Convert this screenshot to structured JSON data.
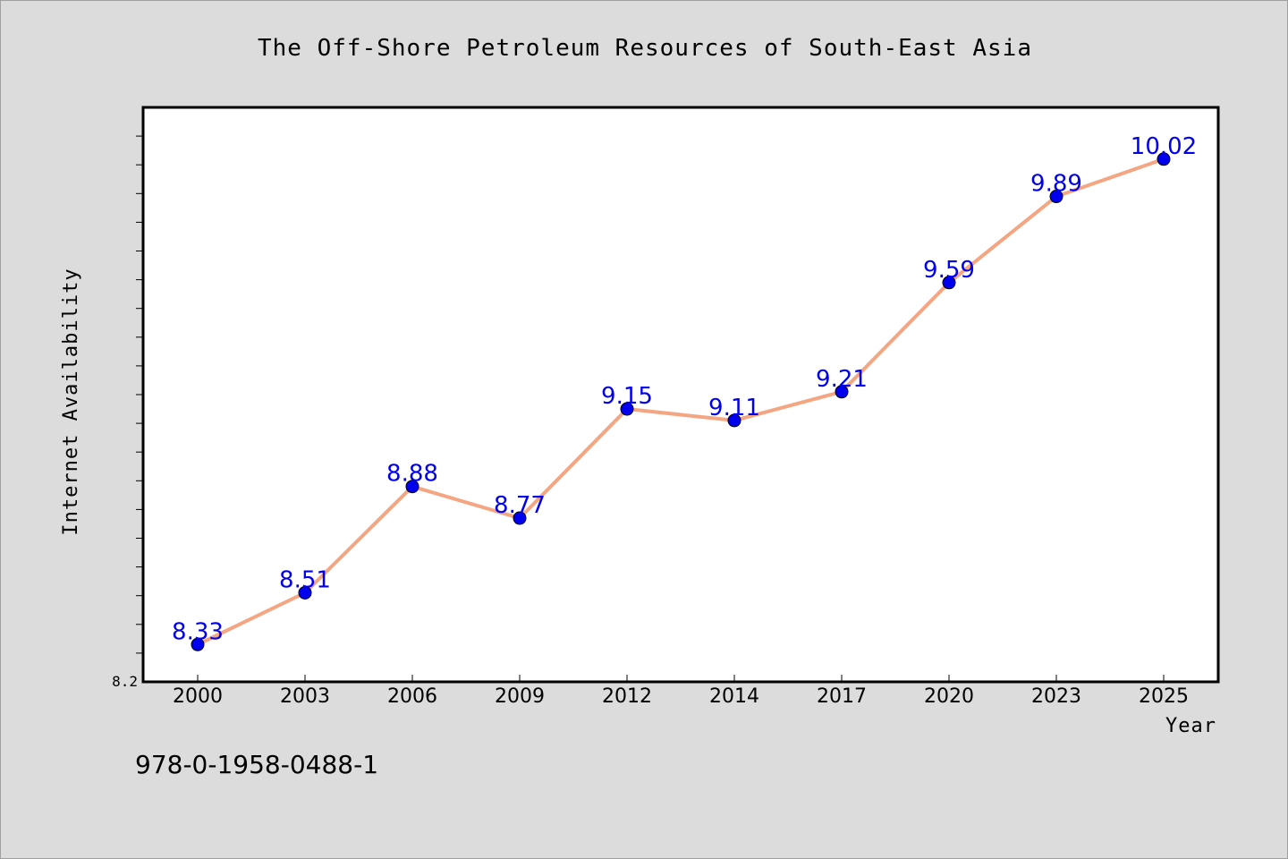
{
  "chart_data": {
    "type": "line",
    "title": "The Off-Shore Petroleum Resources of South-East Asia",
    "xlabel": "Year",
    "ylabel": "Internet Availability",
    "categories": [
      "2000",
      "2003",
      "2006",
      "2009",
      "2012",
      "2014",
      "2017",
      "2020",
      "2023",
      "2025"
    ],
    "series": [
      {
        "values": [
          8.33,
          8.51,
          8.88,
          8.77,
          9.15,
          9.11,
          9.21,
          9.59,
          9.89,
          10.02
        ]
      }
    ],
    "data_labels": [
      "8.33",
      "8.51",
      "8.88",
      "8.77",
      "9.15",
      "9.11",
      "9.21",
      "9.59",
      "9.89",
      "10.02"
    ],
    "ylim": [
      8.2,
      10.2
    ],
    "y_minor_step": 0.1,
    "y_tick_labels": [
      "8.2"
    ],
    "grid": false,
    "legend": "none",
    "colors": {
      "background": "#dcdcdc",
      "plot_background": "#ffffff",
      "line": "#f4a582",
      "marker": "#0000ee",
      "data_label": "#0000ee"
    },
    "annotation": "978-0-1958-0488-1"
  }
}
